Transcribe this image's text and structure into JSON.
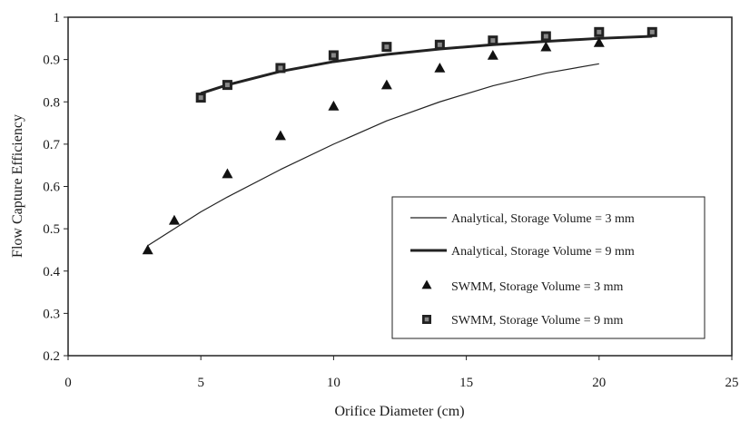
{
  "chart_data": {
    "type": "line",
    "title": "",
    "xlabel": "Orifice Diameter (cm)",
    "ylabel": "Flow Capture Efficiency",
    "xlim": [
      0,
      25
    ],
    "ylim": [
      0.2,
      1
    ],
    "x_ticks": [
      "0",
      "5",
      "10",
      "15",
      "20",
      "25"
    ],
    "y_ticks": [
      "0.2",
      "0.3",
      "0.4",
      "0.5",
      "0.6",
      "0.7",
      "0.8",
      "0.9",
      "1"
    ],
    "grid": false,
    "legend_position": "lower-right",
    "series": [
      {
        "name": "Analytical, Storage Volume = 3 mm",
        "kind": "line",
        "style": "thin",
        "x": [
          3,
          4,
          5,
          6,
          8,
          10,
          12,
          14,
          16,
          18,
          20
        ],
        "y": [
          0.46,
          0.5,
          0.54,
          0.575,
          0.64,
          0.7,
          0.755,
          0.8,
          0.838,
          0.868,
          0.89
        ]
      },
      {
        "name": "Analytical, Storage Volume = 9 mm",
        "kind": "line",
        "style": "thick",
        "x": [
          5,
          6,
          8,
          10,
          12,
          14,
          16,
          18,
          20,
          22
        ],
        "y": [
          0.82,
          0.84,
          0.872,
          0.895,
          0.912,
          0.925,
          0.935,
          0.943,
          0.95,
          0.955
        ]
      },
      {
        "name": "SWMM, Storage Volume = 3 mm",
        "kind": "scatter",
        "marker": "triangle",
        "x": [
          3,
          4,
          6,
          8,
          10,
          12,
          14,
          16,
          18,
          20
        ],
        "y": [
          0.45,
          0.52,
          0.63,
          0.72,
          0.79,
          0.84,
          0.88,
          0.91,
          0.93,
          0.94
        ]
      },
      {
        "name": "SWMM, Storage Volume = 9 mm",
        "kind": "scatter",
        "marker": "square",
        "x": [
          5,
          6,
          8,
          10,
          12,
          14,
          16,
          18,
          20,
          22
        ],
        "y": [
          0.81,
          0.84,
          0.88,
          0.91,
          0.93,
          0.935,
          0.945,
          0.955,
          0.965,
          0.965
        ]
      }
    ]
  }
}
